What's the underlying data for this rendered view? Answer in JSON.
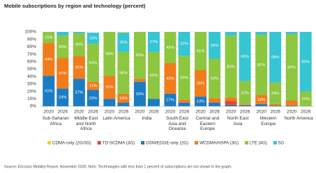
{
  "chart_data": {
    "type": "stacked-bar",
    "title": "Mobile subscriptions by region and technology (percent)",
    "categories": [
      "2020",
      "2026",
      "2020",
      "2026",
      "2020",
      "2026",
      "2020",
      "2026",
      "2020",
      "2026",
      "2020",
      "2026",
      "2020",
      "2026",
      "2020",
      "2026",
      "2020",
      "2026"
    ],
    "groups": [
      "Sub-Saharan Africa",
      "Middle East and North Africa",
      "Latin America",
      "India",
      "South East Asia and Oceania",
      "Central and Eastern Europe",
      "North East Asia",
      "Western Europe",
      "North America"
    ],
    "series": [
      {
        "name": "CDMA-only (2G/3G)",
        "color": "#f2d22a",
        "values": [
          0,
          0,
          0,
          0,
          0,
          1,
          0,
          0,
          0,
          0,
          0,
          0,
          0,
          0,
          0,
          0,
          0,
          0
        ]
      },
      {
        "name": "TD-SCDMA (3G)",
        "color": "#e6452d",
        "values": [
          0,
          0,
          0,
          0,
          0,
          0,
          0,
          0,
          0,
          0,
          0,
          0,
          5,
          1,
          0,
          0,
          0,
          0
        ]
      },
      {
        "name": "GSM/EDGE-only (2G)",
        "color": "#1b7cc3",
        "values": [
          41,
          24,
          37,
          22,
          10,
          5,
          33,
          10,
          17,
          5,
          13,
          5,
          2,
          1,
          3,
          1,
          1,
          0
        ],
        "value_labels": [
          "41%",
          "24%",
          "37%",
          "22%",
          null,
          null,
          "33%",
          null,
          "17%",
          null,
          "13%",
          null,
          null,
          null,
          null,
          null,
          null,
          null
        ]
      },
      {
        "name": "WCDMA/HSPA (3G)",
        "color": "#f07c1c",
        "values": [
          44,
          41,
          31,
          11,
          31,
          12,
          4,
          0,
          41,
          4,
          36,
          6,
          5,
          0,
          12,
          2,
          7,
          0
        ],
        "value_labels": [
          "44%",
          "41%",
          "31%",
          "11%",
          "31%",
          "12%",
          null,
          null,
          "41%",
          null,
          "36%",
          null,
          null,
          null,
          "12%",
          null,
          null,
          null
        ]
      },
      {
        "name": "LTE (4G)",
        "color": "#8dc63f",
        "values": [
          15,
          30,
          30,
          51,
          59,
          56,
          63,
          63,
          42,
          59,
          51,
          53,
          83,
          32,
          81,
          29,
          89,
          20
        ],
        "value_labels": [
          "15%",
          "30%",
          "30%",
          "51%",
          "59%",
          "56%",
          "63%",
          "63%",
          "42%",
          "59%",
          "51%",
          "53%",
          "83%",
          "32%",
          "81%",
          "29%",
          "89%",
          "20%"
        ]
      },
      {
        "name": "5G",
        "color": "#35c5d3",
        "values": [
          0,
          5,
          2,
          15,
          0,
          26,
          0,
          27,
          0,
          32,
          0,
          36,
          5,
          66,
          4,
          68,
          3,
          80
        ],
        "value_labels": [
          null,
          null,
          null,
          "15%",
          null,
          "26%",
          null,
          "27%",
          null,
          "32%",
          null,
          "36%",
          null,
          "66%",
          null,
          "68%",
          null,
          "80%"
        ]
      }
    ],
    "ylim": [
      0,
      100
    ],
    "yticks": [
      {
        "value": 0,
        "label": "0%"
      },
      {
        "value": 10,
        "label": "10%"
      },
      {
        "value": 20,
        "label": "20%"
      },
      {
        "value": 30,
        "label": "30%"
      },
      {
        "value": 40,
        "label": "40%"
      },
      {
        "value": 50,
        "label": "50%"
      },
      {
        "value": 60,
        "label": "60%"
      },
      {
        "value": 70,
        "label": "70%"
      },
      {
        "value": 80,
        "label": "80%"
      },
      {
        "value": 90,
        "label": "90%"
      },
      {
        "value": 100,
        "label": "100%"
      }
    ],
    "grid": true,
    "source": "Source: Ericsson Mobility Report, November 2020. Note: Technologies with less than 1 percent of subscriptions are not shown in the graph."
  }
}
